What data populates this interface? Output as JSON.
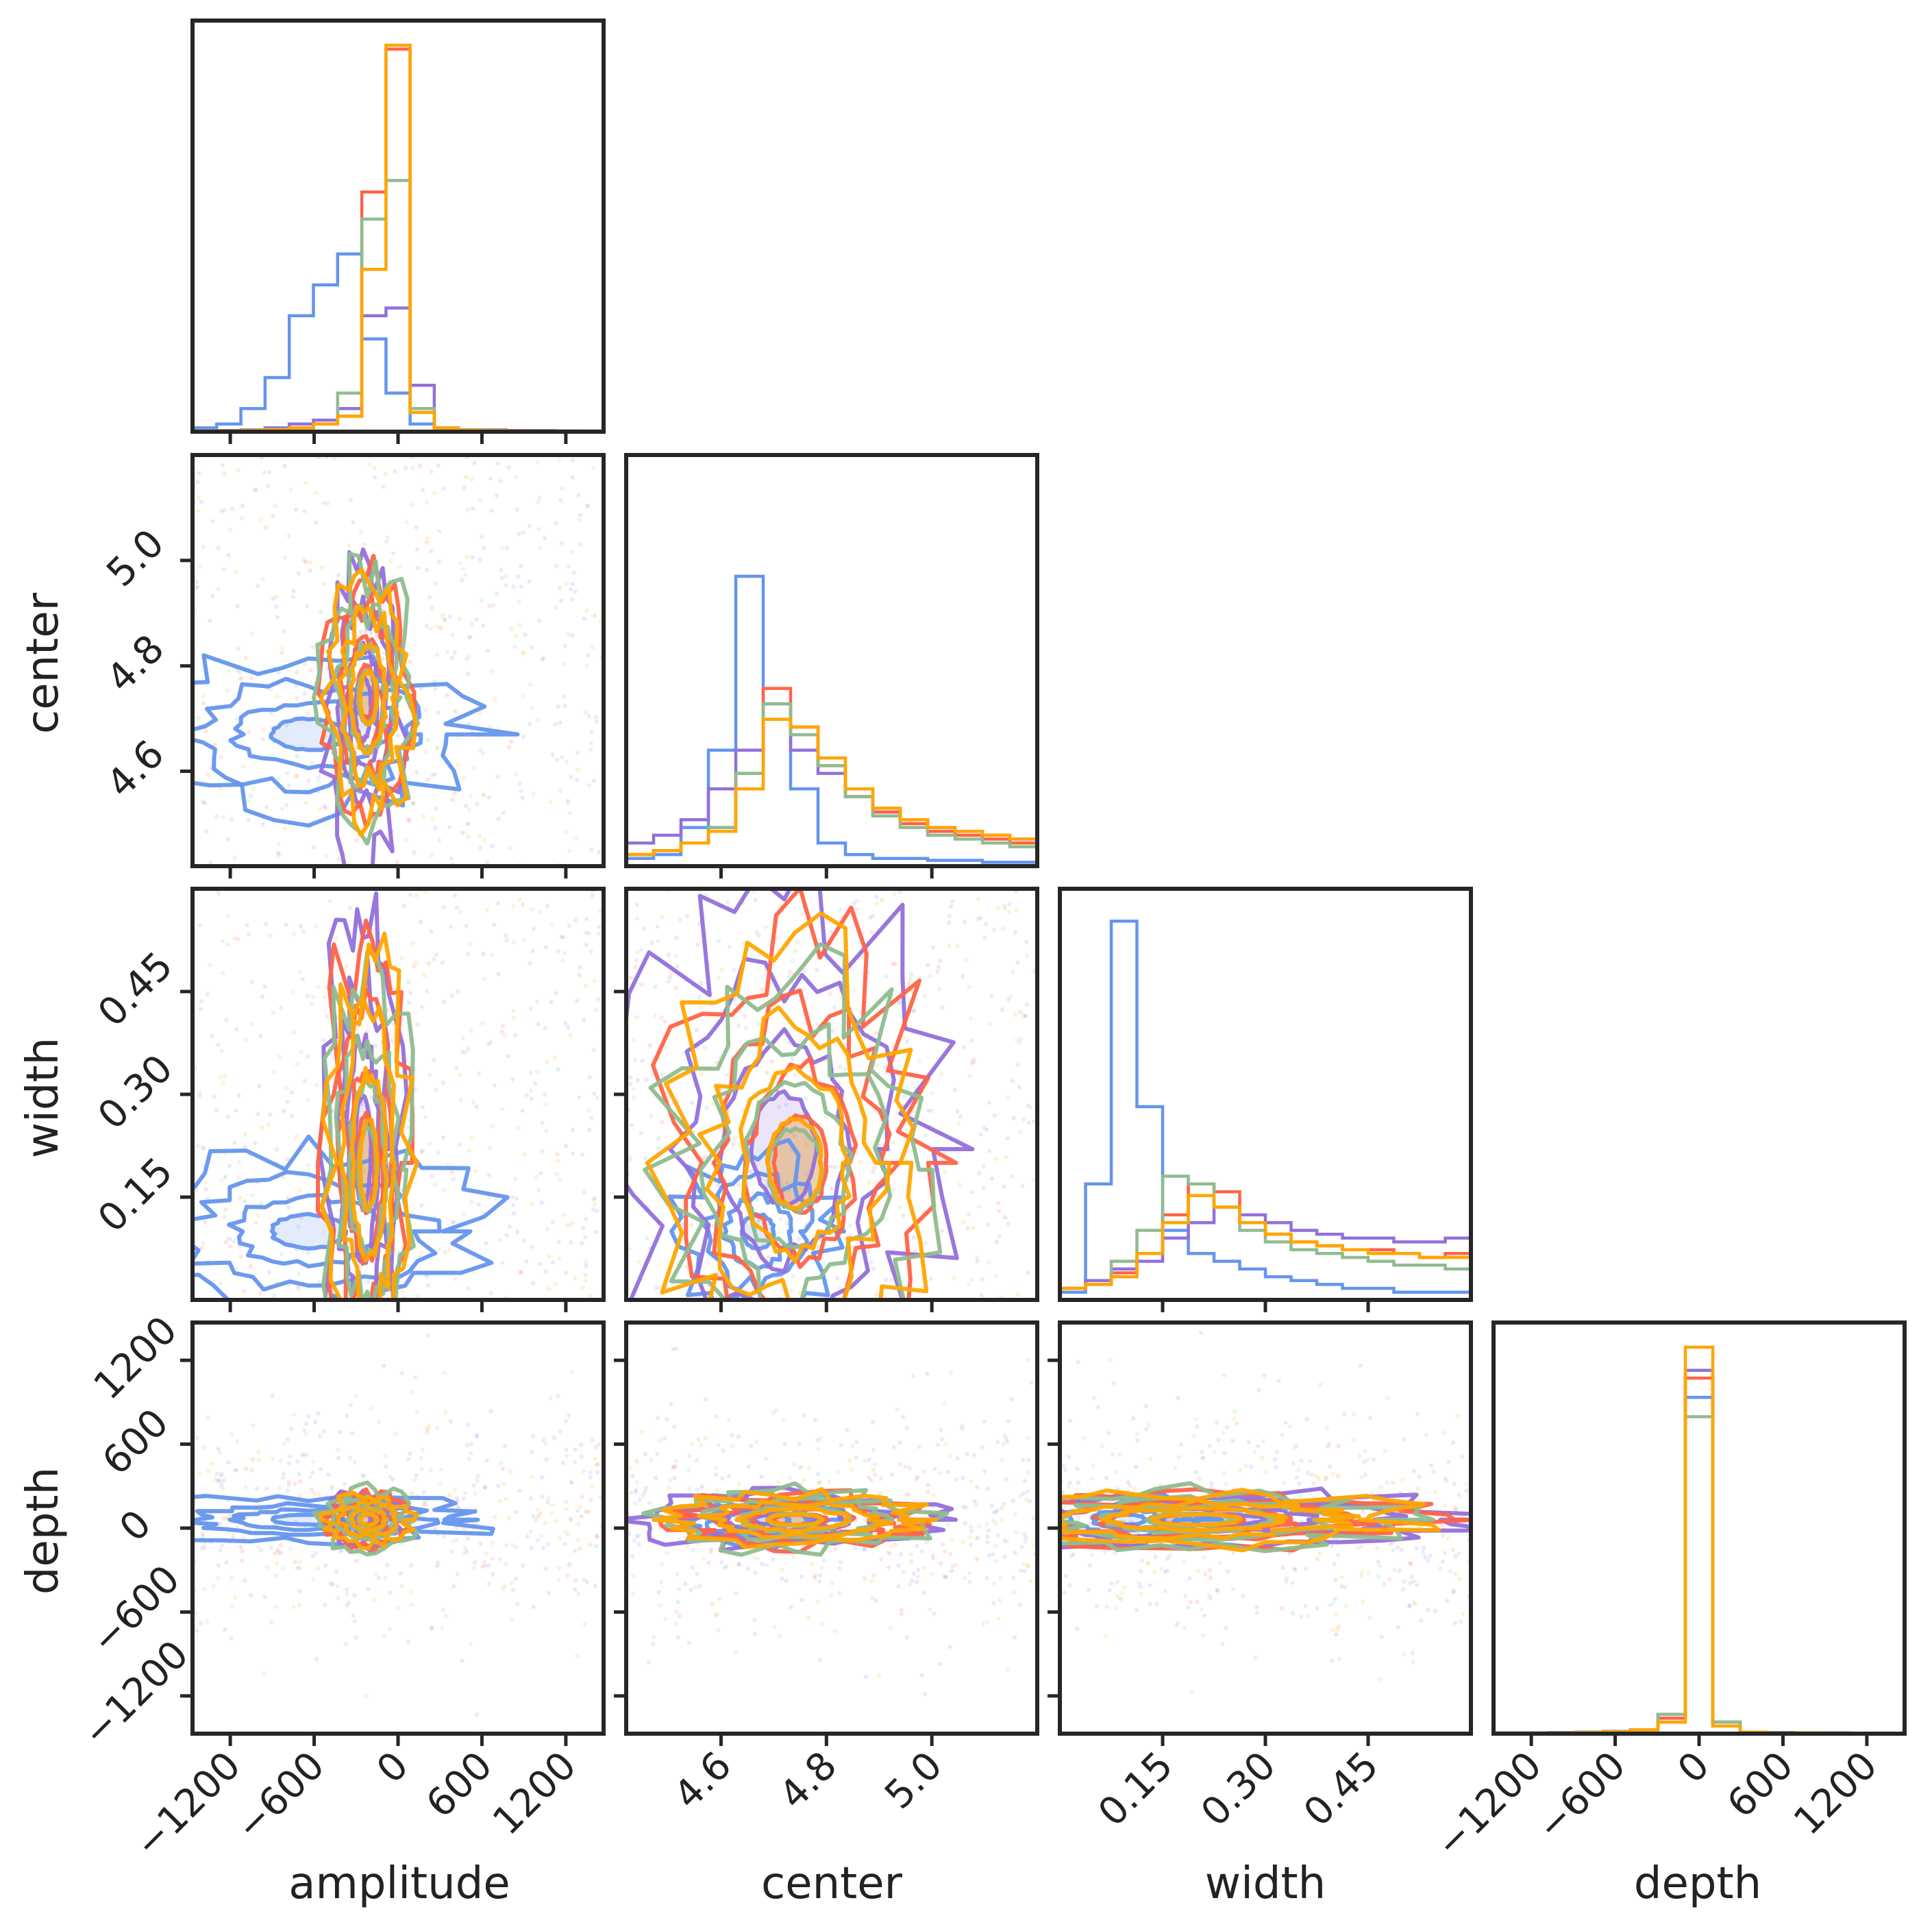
{
  "chart_data": {
    "type": "corner",
    "parameters": [
      "amplitude",
      "center",
      "width",
      "depth"
    ],
    "axis_labels": {
      "amplitude": "amplitude",
      "center": "center",
      "width": "width",
      "depth": "depth"
    },
    "ranges": {
      "amplitude": [
        -1470,
        1470
      ],
      "center": [
        4.42,
        5.2
      ],
      "width": [
        0.0,
        0.6
      ],
      "depth": [
        -1470,
        1470
      ]
    },
    "ticks": {
      "amplitude": [
        -1200,
        -600,
        0,
        600,
        1200
      ],
      "center": [
        4.6,
        4.8,
        5.0
      ],
      "width": [
        0.15,
        0.3,
        0.45
      ],
      "depth": [
        -1200,
        -600,
        0,
        600,
        1200
      ]
    },
    "tick_labels": {
      "amplitude": [
        "−1200",
        "−600",
        "0",
        "600",
        "1200"
      ],
      "center": [
        "4.6",
        "4.8",
        "5.0"
      ],
      "width": [
        "0.15",
        "0.30",
        "0.45"
      ],
      "depth": [
        "−1200",
        "−600",
        "0",
        "600",
        "1200"
      ]
    },
    "series": [
      {
        "name": "blue",
        "color": "#6495ed",
        "hist": {
          "amplitude": [
            0.01,
            0.02,
            0.06,
            0.14,
            0.3,
            0.38,
            0.46,
            0.24,
            0.1,
            0.02,
            0.01,
            0.005,
            0.005,
            0.003,
            0.003,
            0.002,
            0.002
          ],
          "center": [
            0.02,
            0.03,
            0.1,
            0.3,
            0.75,
            0.42,
            0.2,
            0.06,
            0.03,
            0.02,
            0.02,
            0.015,
            0.015,
            0.01,
            0.01
          ],
          "width": [
            0.02,
            0.3,
            0.98,
            0.5,
            0.18,
            0.12,
            0.1,
            0.08,
            0.06,
            0.05,
            0.04,
            0.03,
            0.03,
            0.02,
            0.02,
            0.02
          ],
          "depth": [
            0.002,
            0.002,
            0.003,
            0.004,
            0.006,
            0.01,
            0.05,
            0.87,
            0.03,
            0.004,
            0.003,
            0.002,
            0.002,
            0.001,
            0.001
          ]
        },
        "center_points": {
          "amplitude": -640,
          "center": 4.67,
          "width": 0.1,
          "depth": 60
        }
      },
      {
        "name": "purple",
        "color": "#9370db",
        "hist": {
          "amplitude": [
            0.002,
            0.003,
            0.005,
            0.01,
            0.02,
            0.03,
            0.06,
            0.3,
            0.32,
            0.12,
            0.01,
            0.005,
            0.004,
            0.003,
            0.002,
            0.002,
            0.001
          ],
          "center": [
            0.06,
            0.08,
            0.12,
            0.2,
            0.3,
            0.38,
            0.3,
            0.24,
            0.18,
            0.14,
            0.12,
            0.1,
            0.09,
            0.08,
            0.07
          ],
          "width": [
            0.03,
            0.05,
            0.08,
            0.1,
            0.16,
            0.2,
            0.24,
            0.22,
            0.2,
            0.18,
            0.17,
            0.16,
            0.16,
            0.15,
            0.15,
            0.16
          ],
          "depth": [
            0.001,
            0.001,
            0.002,
            0.003,
            0.004,
            0.01,
            0.03,
            0.94,
            0.02,
            0.004,
            0.002,
            0.002,
            0.001,
            0.001,
            0.001
          ]
        },
        "center_points": {
          "amplitude": -250,
          "center": 4.72,
          "width": 0.22,
          "depth": 60
        }
      },
      {
        "name": "red",
        "color": "#ff6347",
        "hist": {
          "amplitude": [
            0.002,
            0.002,
            0.003,
            0.005,
            0.01,
            0.02,
            0.04,
            0.62,
            0.99,
            0.06,
            0.01,
            0.004,
            0.003,
            0.002,
            0.002,
            0.001,
            0.001
          ],
          "center": [
            0.03,
            0.04,
            0.06,
            0.1,
            0.24,
            0.46,
            0.36,
            0.26,
            0.18,
            0.14,
            0.11,
            0.09,
            0.08,
            0.07,
            0.06
          ],
          "width": [
            0.03,
            0.04,
            0.07,
            0.12,
            0.22,
            0.3,
            0.28,
            0.2,
            0.17,
            0.15,
            0.14,
            0.13,
            0.13,
            0.12,
            0.11,
            0.12
          ],
          "depth": [
            0.001,
            0.001,
            0.002,
            0.003,
            0.005,
            0.01,
            0.04,
            0.92,
            0.03,
            0.004,
            0.002,
            0.002,
            0.001,
            0.001,
            0.001
          ]
        },
        "center_points": {
          "amplitude": -230,
          "center": 4.75,
          "width": 0.2,
          "depth": 60
        }
      },
      {
        "name": "green",
        "color": "#8fbc8f",
        "hist": {
          "amplitude": [
            0.002,
            0.002,
            0.004,
            0.006,
            0.01,
            0.02,
            0.1,
            0.55,
            0.65,
            0.06,
            0.01,
            0.004,
            0.003,
            0.002,
            0.002,
            0.001,
            0.001
          ],
          "center": [
            0.03,
            0.04,
            0.06,
            0.1,
            0.24,
            0.42,
            0.34,
            0.26,
            0.18,
            0.13,
            0.1,
            0.08,
            0.07,
            0.06,
            0.05
          ],
          "width": [
            0.03,
            0.04,
            0.1,
            0.18,
            0.32,
            0.3,
            0.24,
            0.18,
            0.15,
            0.13,
            0.12,
            0.11,
            0.1,
            0.09,
            0.09,
            0.08
          ],
          "depth": [
            0.001,
            0.001,
            0.002,
            0.003,
            0.005,
            0.01,
            0.05,
            0.82,
            0.03,
            0.004,
            0.002,
            0.002,
            0.001,
            0.001,
            0.001
          ]
        },
        "center_points": {
          "amplitude": -220,
          "center": 4.74,
          "width": 0.19,
          "depth": 60
        }
      },
      {
        "name": "orange",
        "color": "#ffa500",
        "hist": {
          "amplitude": [
            0.002,
            0.002,
            0.003,
            0.005,
            0.01,
            0.02,
            0.04,
            0.42,
            1.0,
            0.05,
            0.01,
            0.004,
            0.003,
            0.002,
            0.002,
            0.001,
            0.001
          ],
          "center": [
            0.03,
            0.04,
            0.06,
            0.09,
            0.2,
            0.38,
            0.36,
            0.28,
            0.2,
            0.15,
            0.12,
            0.1,
            0.09,
            0.08,
            0.07
          ],
          "width": [
            0.03,
            0.04,
            0.06,
            0.12,
            0.2,
            0.27,
            0.24,
            0.2,
            0.17,
            0.15,
            0.14,
            0.13,
            0.12,
            0.12,
            0.11,
            0.11
          ],
          "depth": [
            0.001,
            0.001,
            0.002,
            0.003,
            0.005,
            0.01,
            0.03,
            1.0,
            0.02,
            0.004,
            0.002,
            0.002,
            0.001,
            0.001,
            0.001
          ]
        },
        "center_points": {
          "amplitude": -210,
          "center": 4.74,
          "width": 0.2,
          "depth": 60
        }
      }
    ]
  }
}
